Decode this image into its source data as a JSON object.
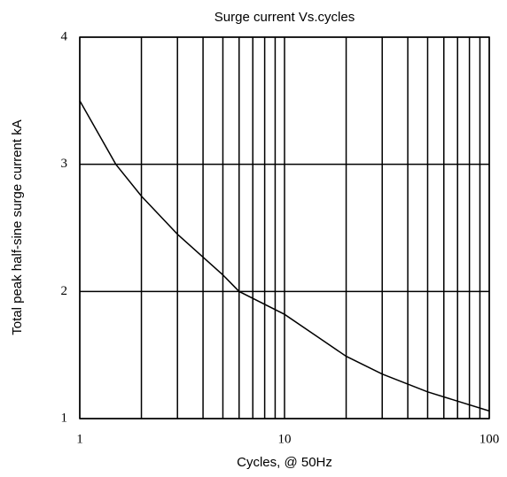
{
  "chart_data": {
    "type": "line",
    "title": "Surge current Vs.cycles",
    "xlabel": "Cycles, @ 50Hz",
    "ylabel": "Total peak half-sine surge current kA",
    "xscale": "log",
    "xlim": [
      1,
      100
    ],
    "xticks": [
      1,
      10,
      100
    ],
    "xgrid": [
      1,
      2,
      3,
      4,
      5,
      6,
      7,
      8,
      9,
      10,
      20,
      30,
      40,
      50,
      60,
      70,
      80,
      90,
      100
    ],
    "ylim": [
      1,
      4
    ],
    "yticks": [
      1,
      2,
      3,
      4
    ],
    "grid": true,
    "x": [
      1,
      1.5,
      2,
      3,
      5,
      6,
      10,
      20,
      30,
      50,
      100
    ],
    "series": [
      {
        "name": null,
        "color": "#000000",
        "values": [
          3.5,
          3.0,
          2.75,
          2.45,
          2.13,
          2.0,
          1.82,
          1.49,
          1.35,
          1.21,
          1.06
        ]
      }
    ]
  }
}
